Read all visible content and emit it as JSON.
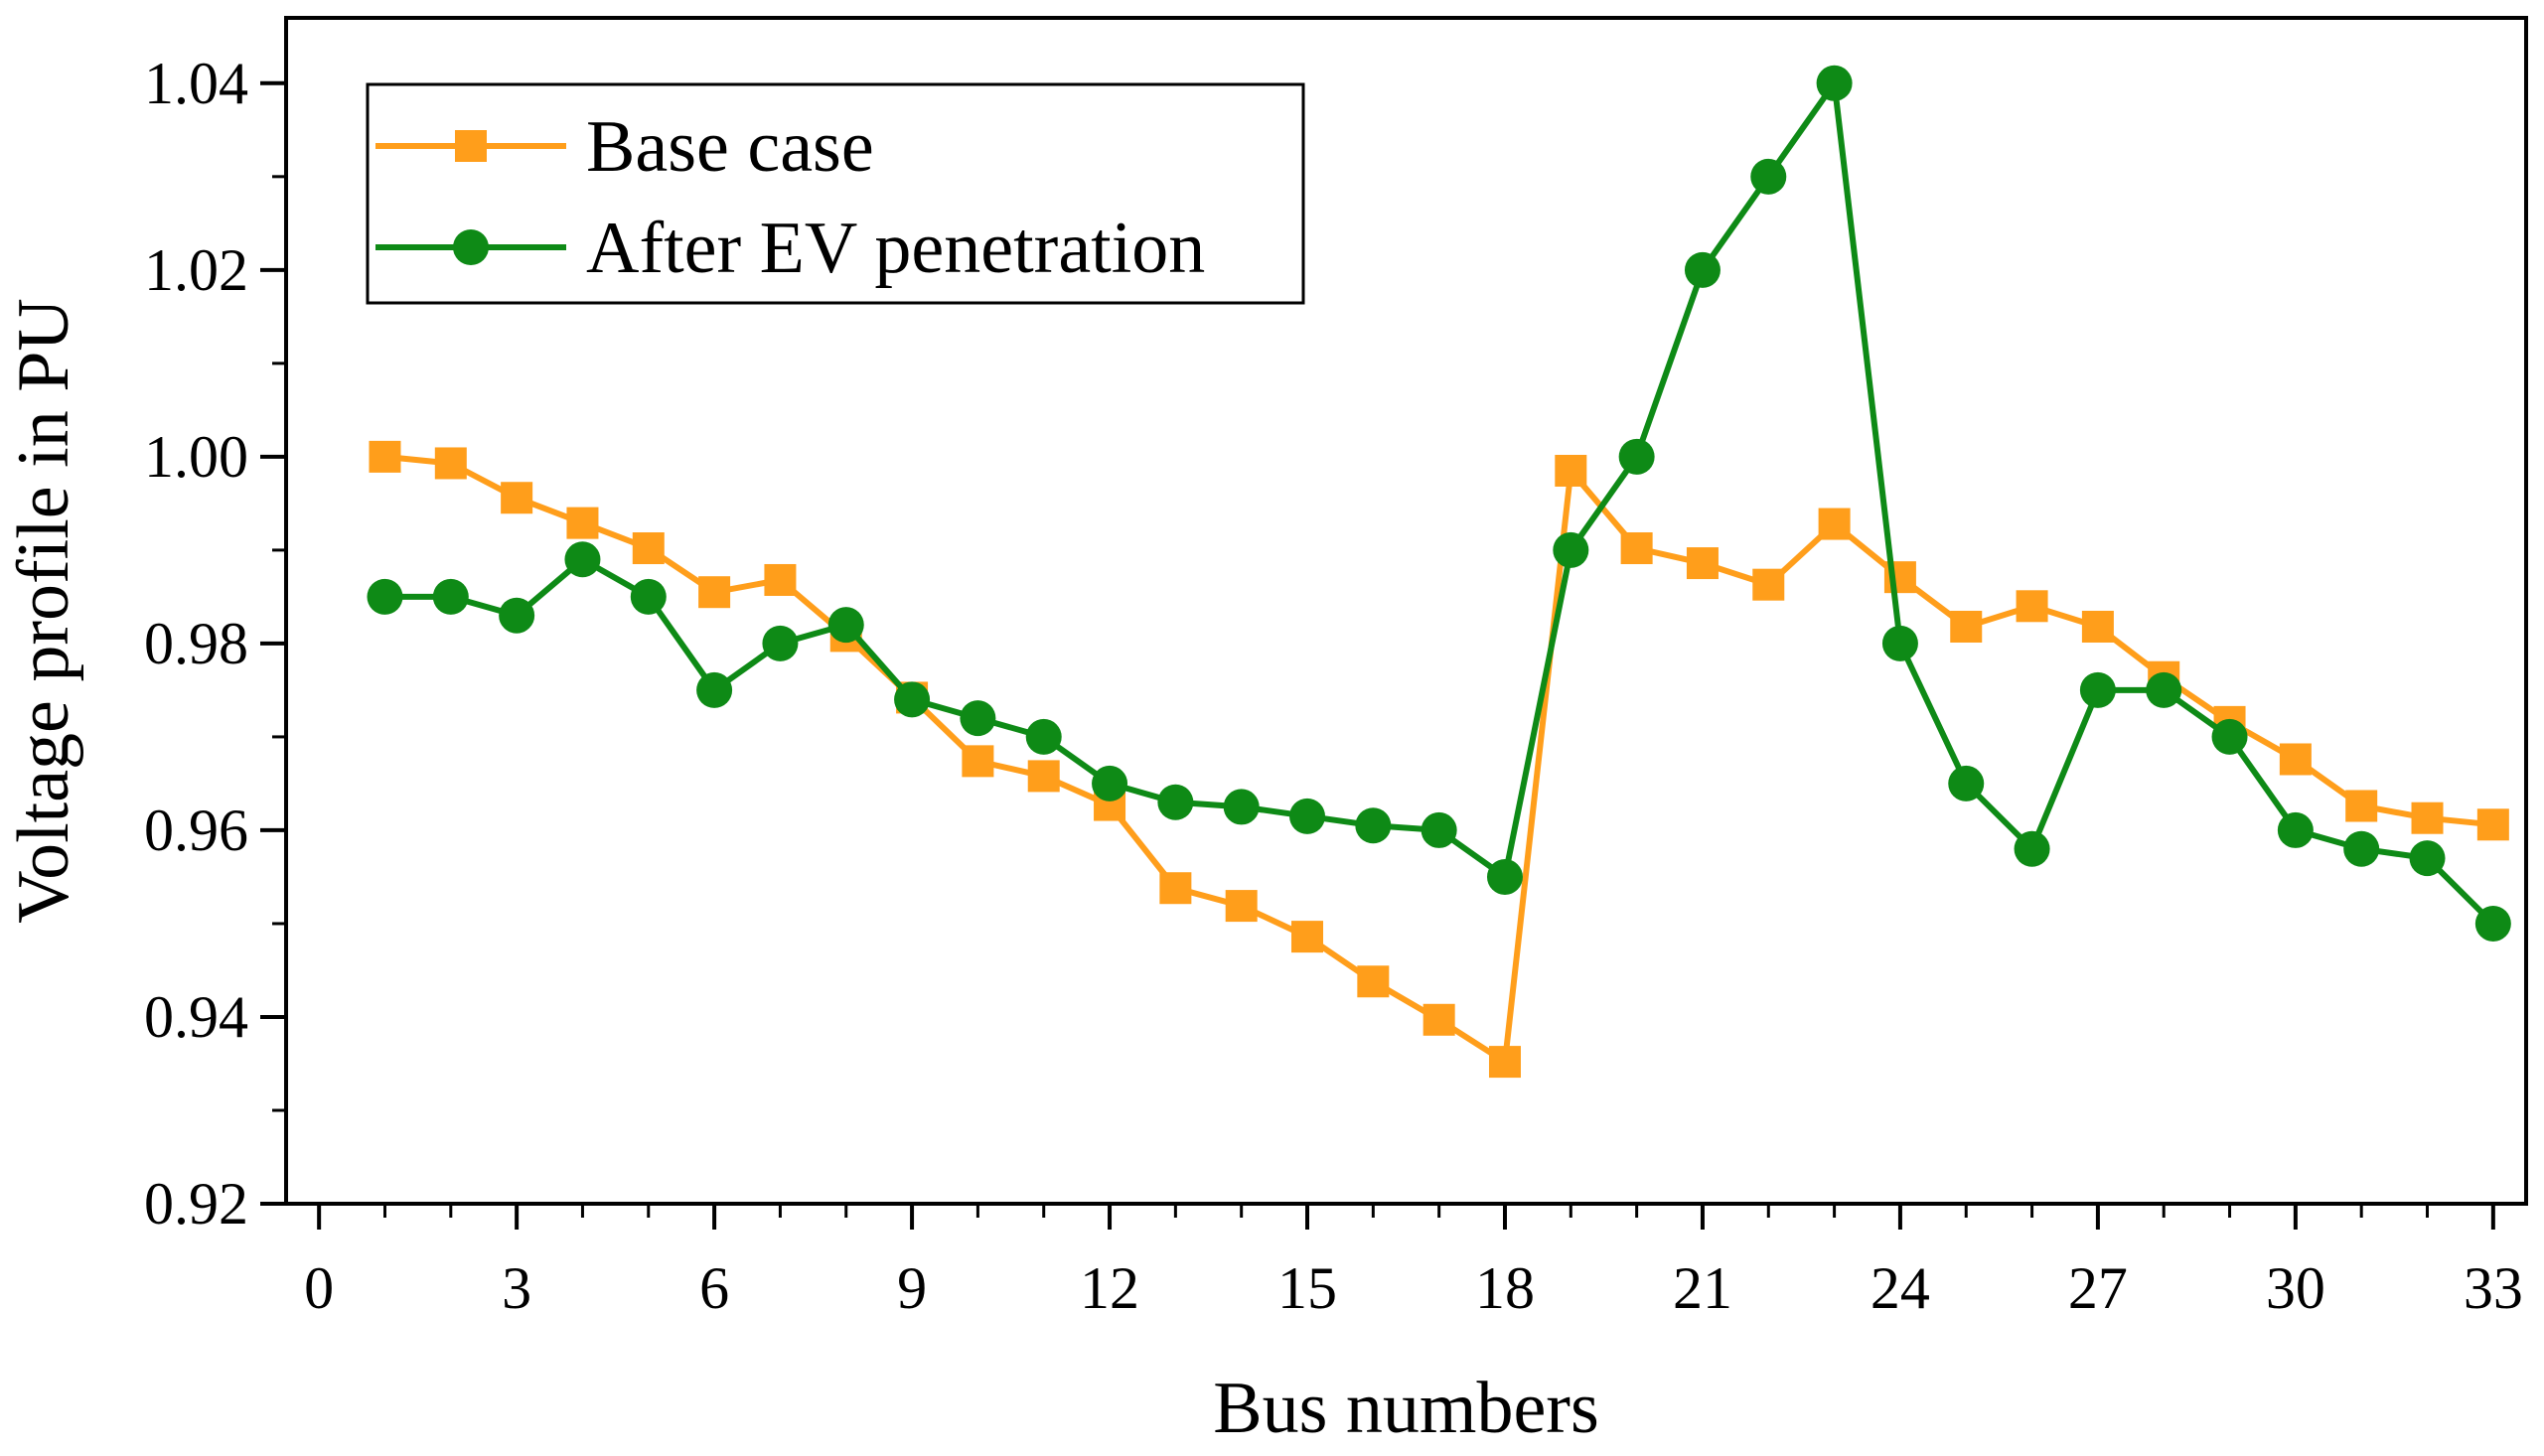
{
  "chart_data": {
    "type": "line",
    "title": "",
    "xlabel": "Bus numbers",
    "ylabel": "Voltage profile in PU",
    "xlim": [
      -0.5,
      33.5
    ],
    "ylim": [
      0.92,
      1.047
    ],
    "xticks": [
      0,
      3,
      6,
      9,
      12,
      15,
      18,
      21,
      24,
      27,
      30,
      33
    ],
    "xtick_labels": [
      "0",
      "3",
      "6",
      "9",
      "12",
      "15",
      "18",
      "21",
      "24",
      "27",
      "30",
      "33"
    ],
    "yticks": [
      0.92,
      0.94,
      0.96,
      0.98,
      1.0,
      1.02,
      1.04
    ],
    "ytick_labels": [
      "0.92",
      "0.94",
      "0.96",
      "0.98",
      "1.00",
      "1.02",
      "1.04"
    ],
    "grid": false,
    "legend": "top-left",
    "x": [
      1,
      2,
      3,
      4,
      5,
      6,
      7,
      8,
      9,
      10,
      11,
      12,
      13,
      14,
      15,
      16,
      17,
      18,
      19,
      20,
      21,
      22,
      23,
      24,
      25,
      26,
      27,
      28,
      29,
      30,
      31,
      32,
      33
    ],
    "series": [
      {
        "name": "Base case",
        "color": "#FF9E1B",
        "marker": "square",
        "values": [
          1.0,
          0.9993,
          0.9956,
          0.9929,
          0.9902,
          0.9855,
          0.9868,
          0.9808,
          0.9742,
          0.9674,
          0.9658,
          0.9627,
          0.9538,
          0.9519,
          0.9486,
          0.9438,
          0.9397,
          0.9352,
          0.9985,
          0.9902,
          0.9886,
          0.9863,
          0.9928,
          0.9871,
          0.9818,
          0.984,
          0.9818,
          0.9764,
          0.9716,
          0.9676,
          0.9626,
          0.9613,
          0.9606
        ]
      },
      {
        "name": "After EV penetration",
        "color": "#0E8A16",
        "marker": "circle",
        "values": [
          0.985,
          0.985,
          0.983,
          0.989,
          0.985,
          0.975,
          0.98,
          0.982,
          0.974,
          0.972,
          0.97,
          0.965,
          0.963,
          0.9625,
          0.9615,
          0.9605,
          0.96,
          0.955,
          0.99,
          1.0,
          1.02,
          1.03,
          1.04,
          0.98,
          0.965,
          0.958,
          0.975,
          0.975,
          0.97,
          0.96,
          0.958,
          0.957,
          0.95
        ]
      }
    ]
  }
}
